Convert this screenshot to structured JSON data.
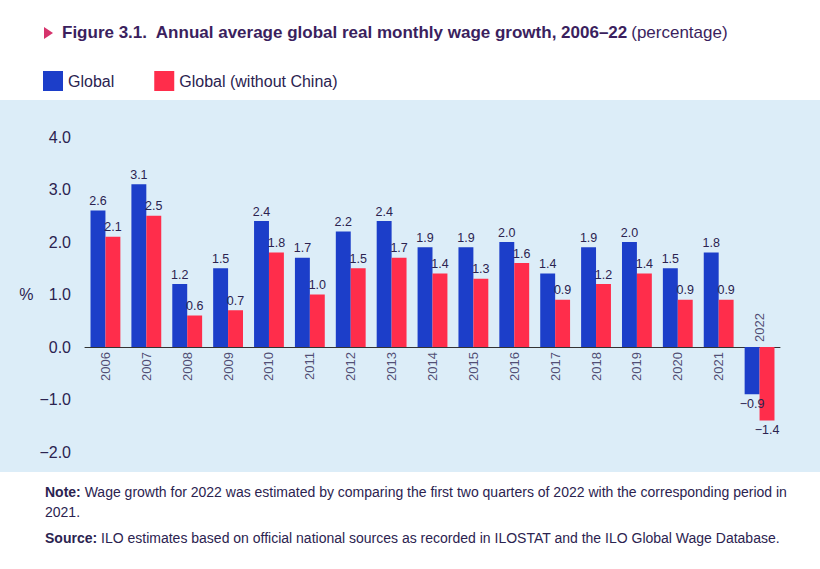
{
  "chart_data": {
    "type": "bar",
    "title": "Figure 3.1.  Annual average global real monthly wage growth, 2006–22",
    "subtitle": "(percentage)",
    "y_label": "%",
    "categories": [
      "2006",
      "2007",
      "2008",
      "2009",
      "2010",
      "2011",
      "2012",
      "2013",
      "2014",
      "2015",
      "2016",
      "2017",
      "2018",
      "2019",
      "2020",
      "2021",
      "2022"
    ],
    "series": [
      {
        "name": "Global",
        "color": "#1c3ec9",
        "values": [
          2.6,
          3.1,
          1.2,
          1.5,
          2.4,
          1.7,
          2.2,
          2.4,
          1.9,
          1.9,
          2.0,
          1.4,
          1.9,
          2.0,
          1.5,
          1.8,
          -0.9
        ],
        "value_labels": [
          "2.6",
          "3.1",
          "1.2",
          "1.5",
          "2.4",
          "1.7",
          "2.2",
          "2.4",
          "1.9",
          "1.9",
          "2.0",
          "1.4",
          "1.9",
          "2.0",
          "1.5",
          "1.8",
          "−0.9"
        ]
      },
      {
        "name": "Global (without China)",
        "color": "#ff2d4b",
        "values": [
          2.1,
          2.5,
          0.6,
          0.7,
          1.8,
          1.0,
          1.5,
          1.7,
          1.4,
          1.3,
          1.6,
          0.9,
          1.2,
          1.4,
          0.9,
          0.9,
          -1.4
        ],
        "value_labels": [
          "2.1",
          "2.5",
          "0.6",
          "0.7",
          "1.8",
          "1.0",
          "1.5",
          "1.7",
          "1.4",
          "1.3",
          "1.6",
          "0.9",
          "1.2",
          "1.4",
          "0.9",
          "0.9",
          "−1.4"
        ]
      }
    ],
    "ylim": [
      -2,
      4
    ],
    "yticks": [
      {
        "value": -2,
        "label": "−2.0"
      },
      {
        "value": -1,
        "label": "−1.0"
      },
      {
        "value": 0,
        "label": "0.0"
      },
      {
        "value": 1,
        "label": "1.0"
      },
      {
        "value": 2,
        "label": "2.0"
      },
      {
        "value": 3,
        "label": "3.0"
      },
      {
        "value": 4,
        "label": "4.0"
      }
    ],
    "grid": false,
    "legend": "top-left",
    "data_labels": true,
    "notes": [
      {
        "label": "Note:",
        "text": "Wage growth for 2022 was estimated by comparing the first two quarters of 2022 with the corresponding period in 2021."
      },
      {
        "label": "Source:",
        "text": "ILO estimates based on official national sources as recorded in ILOSTAT and the ILO Global Wage Database."
      }
    ]
  }
}
